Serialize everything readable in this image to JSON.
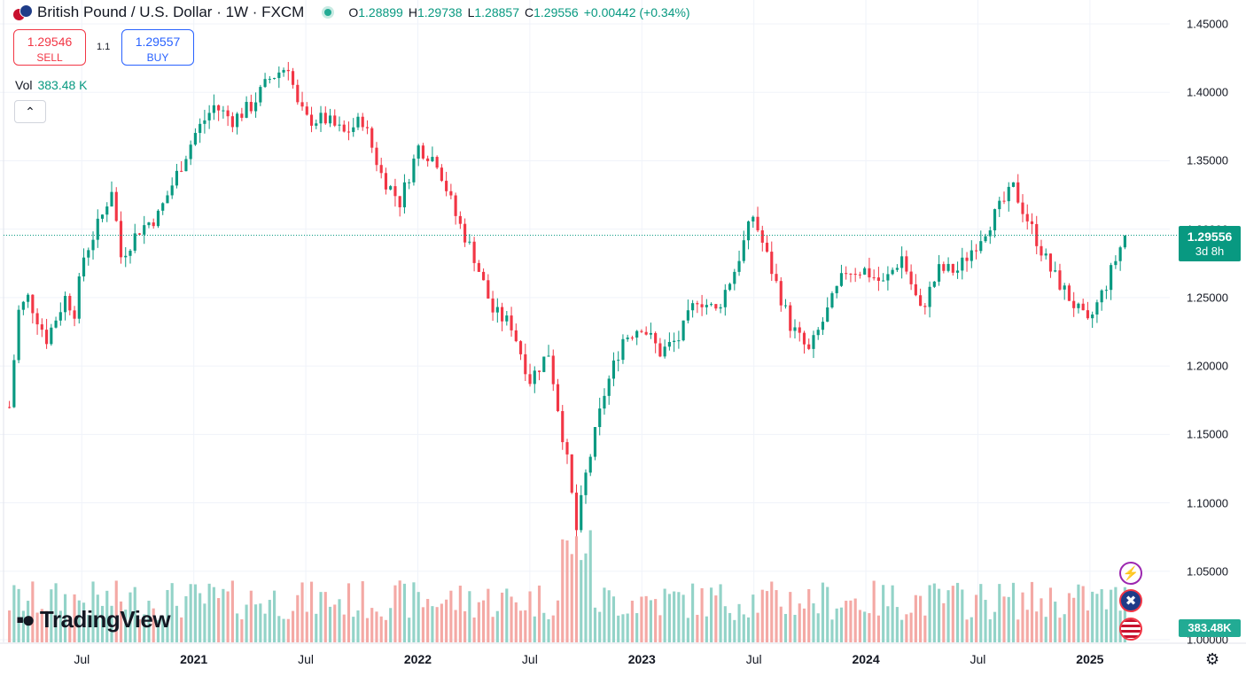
{
  "header": {
    "title": "British Pound / U.S. Dollar · 1W · FXCM",
    "ohlc": [
      {
        "k": "O",
        "v": "1.28899"
      },
      {
        "k": "H",
        "v": "1.29738"
      },
      {
        "k": "L",
        "v": "1.28857"
      },
      {
        "k": "C",
        "v": "1.29556"
      },
      {
        "k": "",
        "v": "+0.00442 (+0.34%)"
      }
    ]
  },
  "trade": {
    "sell_price": "1.29546",
    "sell_label": "SELL",
    "buy_price": "1.29557",
    "buy_label": "BUY",
    "spread": "1.1"
  },
  "volume": {
    "label": "Vol",
    "value": "383.48 K",
    "tag": "383.48K"
  },
  "current": {
    "price": "1.29556",
    "countdown": "3d 8h"
  },
  "brand": "TradingView",
  "icons": [
    "flag-gbp-usd-icon",
    "live-status-icon",
    "collapse-chevron-icon",
    "lightning-icon",
    "uk-flag-icon",
    "us-flag-icon",
    "settings-gear-icon"
  ],
  "colors": {
    "up": "#089981",
    "down": "#f23645",
    "up_volume": "#93d3c8",
    "down_volume": "#f4a9a5"
  },
  "chart_data": {
    "type": "candlestick",
    "timeframe": "1W",
    "y_ticks": [
      "1.45000",
      "1.40000",
      "1.35000",
      "1.30000",
      "1.25000",
      "1.20000",
      "1.15000",
      "1.10000",
      "1.05000",
      "1.00000"
    ],
    "ylim": [
      1.0,
      1.45
    ],
    "x_ticks": [
      {
        "label": "Jul",
        "date": "2020-07",
        "year": false
      },
      {
        "label": "2021",
        "date": "2021-01",
        "year": true
      },
      {
        "label": "Jul",
        "date": "2021-07",
        "year": false
      },
      {
        "label": "2022",
        "date": "2022-01",
        "year": true
      },
      {
        "label": "Jul",
        "date": "2022-07",
        "year": false
      },
      {
        "label": "2023",
        "date": "2023-01",
        "year": true
      },
      {
        "label": "Jul",
        "date": "2023-07",
        "year": false
      },
      {
        "label": "2024",
        "date": "2024-01",
        "year": true
      },
      {
        "label": "Jul",
        "date": "2024-07",
        "year": false
      },
      {
        "label": "2025",
        "date": "2025-01",
        "year": true
      }
    ],
    "x_range": [
      "2020-03",
      "2025-03"
    ],
    "close_path": [
      [
        "2020-03",
        1.17
      ],
      [
        "2020-03",
        1.24
      ],
      [
        "2020-04",
        1.25
      ],
      [
        "2020-05",
        1.22
      ],
      [
        "2020-06",
        1.25
      ],
      [
        "2020-06",
        1.24
      ],
      [
        "2020-07",
        1.28
      ],
      [
        "2020-08",
        1.31
      ],
      [
        "2020-08",
        1.33
      ],
      [
        "2020-09",
        1.28
      ],
      [
        "2020-10",
        1.3
      ],
      [
        "2020-11",
        1.31
      ],
      [
        "2020-12",
        1.34
      ],
      [
        "2021-01",
        1.37
      ],
      [
        "2021-02",
        1.39
      ],
      [
        "2021-03",
        1.38
      ],
      [
        "2021-04",
        1.39
      ],
      [
        "2021-05",
        1.41
      ],
      [
        "2021-06",
        1.42
      ],
      [
        "2021-06",
        1.39
      ],
      [
        "2021-07",
        1.38
      ],
      [
        "2021-08",
        1.38
      ],
      [
        "2021-09",
        1.37
      ],
      [
        "2021-10",
        1.38
      ],
      [
        "2021-11",
        1.34
      ],
      [
        "2021-12",
        1.32
      ],
      [
        "2022-01",
        1.36
      ],
      [
        "2022-02",
        1.35
      ],
      [
        "2022-03",
        1.31
      ],
      [
        "2022-04",
        1.28
      ],
      [
        "2022-05",
        1.24
      ],
      [
        "2022-06",
        1.23
      ],
      [
        "2022-07",
        1.19
      ],
      [
        "2022-08",
        1.21
      ],
      [
        "2022-09",
        1.13
      ],
      [
        "2022-09",
        1.08
      ],
      [
        "2022-10",
        1.12
      ],
      [
        "2022-11",
        1.18
      ],
      [
        "2022-12",
        1.22
      ],
      [
        "2023-01",
        1.23
      ],
      [
        "2023-02",
        1.21
      ],
      [
        "2023-03",
        1.22
      ],
      [
        "2023-04",
        1.25
      ],
      [
        "2023-05",
        1.24
      ],
      [
        "2023-06",
        1.27
      ],
      [
        "2023-07",
        1.31
      ],
      [
        "2023-07",
        1.29
      ],
      [
        "2023-08",
        1.27
      ],
      [
        "2023-09",
        1.23
      ],
      [
        "2023-10",
        1.21
      ],
      [
        "2023-11",
        1.24
      ],
      [
        "2023-12",
        1.27
      ],
      [
        "2024-01",
        1.27
      ],
      [
        "2024-02",
        1.26
      ],
      [
        "2024-03",
        1.28
      ],
      [
        "2024-04",
        1.24
      ],
      [
        "2024-05",
        1.27
      ],
      [
        "2024-06",
        1.27
      ],
      [
        "2024-07",
        1.29
      ],
      [
        "2024-08",
        1.31
      ],
      [
        "2024-09",
        1.33
      ],
      [
        "2024-10",
        1.3
      ],
      [
        "2024-11",
        1.27
      ],
      [
        "2024-12",
        1.25
      ],
      [
        "2025-01",
        1.23
      ],
      [
        "2025-02",
        1.26
      ],
      [
        "2025-03",
        1.2956
      ]
    ],
    "volume_ylim": [
      0,
      1000
    ]
  }
}
